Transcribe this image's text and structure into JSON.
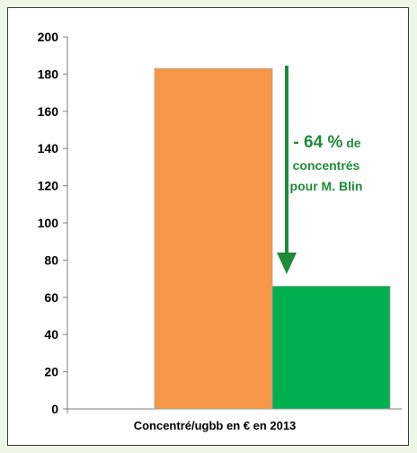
{
  "chart_data": {
    "type": "bar",
    "categories": [
      "",
      ""
    ],
    "values": [
      183,
      66
    ],
    "colors": [
      "#f79646",
      "#00b050"
    ],
    "title": "",
    "xlabel": "Concentré/ugbb en € en 2013",
    "ylabel": "",
    "ylim": [
      0,
      200
    ],
    "yticks": [
      "0",
      "20",
      "40",
      "60",
      "80",
      "100",
      "120",
      "140",
      "160",
      "180",
      "200"
    ],
    "grid": false,
    "annotation": {
      "highlight": "- 64 %",
      "suffix": " de",
      "line2": "concentrés",
      "line3": "pour M. Blin",
      "color": "#1f8a3a"
    },
    "arrow_color": "#1f8a3a"
  }
}
